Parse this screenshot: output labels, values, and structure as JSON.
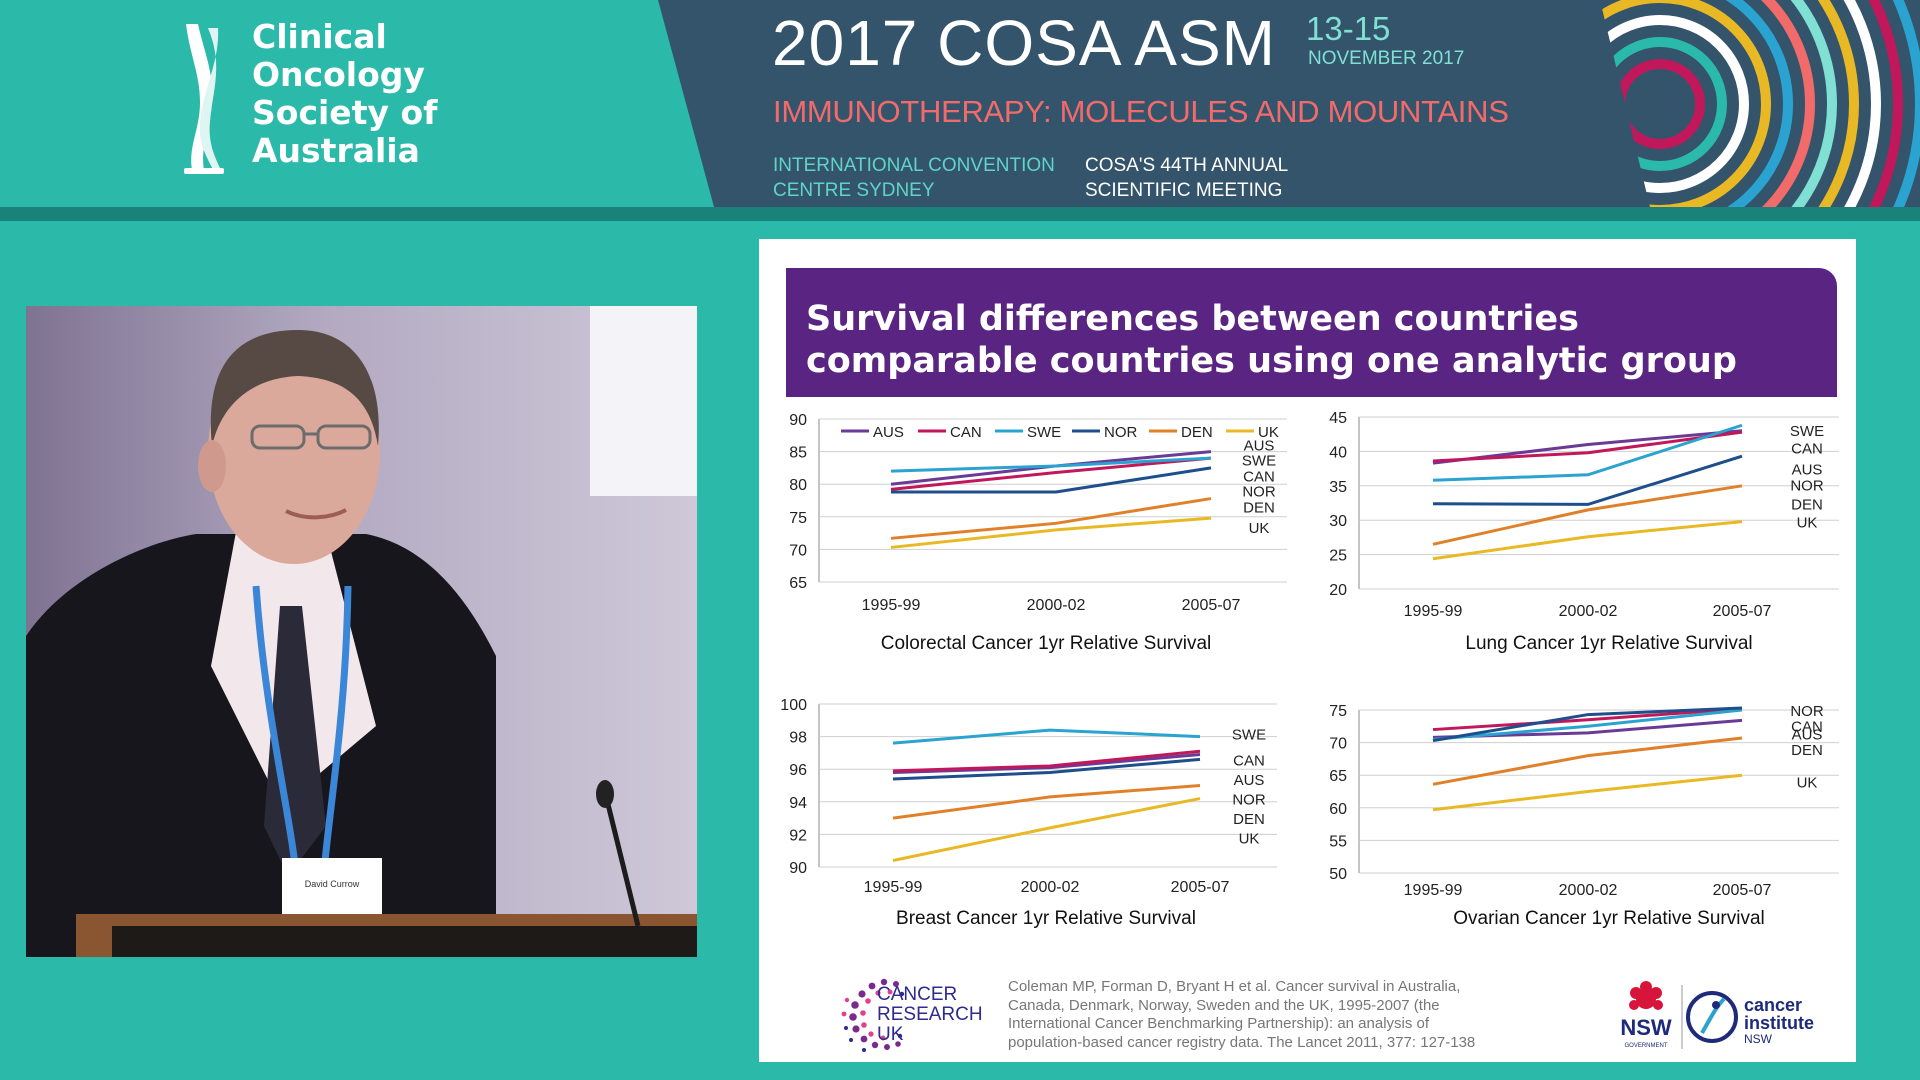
{
  "banner": {
    "org_lines": [
      "Clinical",
      "Oncology",
      "Society of",
      "Australia"
    ],
    "conference_title": "2017 COSA ASM",
    "dates": "13-15",
    "month": "NOVEMBER 2017",
    "theme": "IMMUNOTHERAPY: MOLECULES AND MOUNTAINS",
    "venue_lines": [
      "INTERNATIONAL CONVENTION",
      "CENTRE  SYDNEY"
    ],
    "meeting_lines": [
      "COSA'S 44TH ANNUAL",
      "SCIENTIFIC MEETING"
    ],
    "colors": {
      "teal": "#2bbaa9",
      "navy": "#34546c",
      "coral": "#f26b6b",
      "light_teal": "#7fe0d3"
    }
  },
  "speaker_badge": {
    "name": "David Currow"
  },
  "slide": {
    "title_lines": [
      "Survival differences between countries",
      "comparable countries using one analytic group"
    ],
    "header_color": "#5a2483",
    "footer": {
      "cruk_lines": [
        "CANCER",
        "RESEARCH",
        "UK"
      ],
      "citation_lines": [
        "Coleman MP, Forman D, Bryant H et al. Cancer survival in Australia,",
        "Canada, Denmark, Norway, Sweden and the UK, 1995-2007 (the",
        "International Cancer Benchmarking Partnership): an analysis of",
        "population-based cancer registry data. The Lancet 2011, 377: 127-138"
      ],
      "nsw_label": "NSW",
      "nsw_sub": "GOVERNMENT",
      "cinsw_lines": [
        "cancer",
        "institute",
        "NSW"
      ]
    }
  },
  "chart_data": [
    {
      "type": "line",
      "title": "Colorectal Cancer 1yr Relative Survival",
      "categories": [
        "1995-99",
        "2000-02",
        "2005-07"
      ],
      "ylim": [
        65,
        90
      ],
      "yticks": [
        65,
        70,
        75,
        80,
        85,
        90
      ],
      "legend": [
        {
          "name": "AUS",
          "color": "#6a3a96"
        },
        {
          "name": "CAN",
          "color": "#c0185a"
        },
        {
          "name": "SWE",
          "color": "#2ba3d0"
        },
        {
          "name": "NOR",
          "color": "#1f4e8c"
        },
        {
          "name": "DEN",
          "color": "#e0812a"
        },
        {
          "name": "UK",
          "color": "#e8b925"
        }
      ],
      "series": [
        {
          "name": "AUS",
          "color": "#6a3a96",
          "values": [
            80,
            82.8,
            85
          ]
        },
        {
          "name": "CAN",
          "color": "#c0185a",
          "values": [
            79.2,
            81.8,
            84
          ]
        },
        {
          "name": "SWE",
          "color": "#2ba3d0",
          "values": [
            82,
            82.8,
            84
          ]
        },
        {
          "name": "NOR",
          "color": "#1f4e8c",
          "values": [
            78.8,
            78.8,
            82.5
          ]
        },
        {
          "name": "DEN",
          "color": "#e0812a",
          "values": [
            71.7,
            74,
            77.8
          ]
        },
        {
          "name": "UK",
          "color": "#e8b925",
          "values": [
            70.3,
            73,
            74.8
          ]
        }
      ],
      "end_labels": [
        {
          "text": "AUS",
          "value": 86.1
        },
        {
          "text": "SWE",
          "value": 83.8
        },
        {
          "text": "CAN",
          "value": 81.3
        },
        {
          "text": "NOR",
          "value": 79.0
        },
        {
          "text": "DEN",
          "value": 76.6
        },
        {
          "text": "UK",
          "value": 73.4
        }
      ]
    },
    {
      "type": "line",
      "title": "Lung Cancer 1yr Relative Survival",
      "categories": [
        "1995-99",
        "2000-02",
        "2005-07"
      ],
      "ylim": [
        20,
        45
      ],
      "yticks": [
        20,
        25,
        30,
        35,
        40,
        45
      ],
      "series": [
        {
          "name": "AUS",
          "color": "#6a3a96",
          "values": [
            38.3,
            41,
            43
          ]
        },
        {
          "name": "CAN",
          "color": "#c0185a",
          "values": [
            38.6,
            39.8,
            42.8
          ]
        },
        {
          "name": "SWE",
          "color": "#2ba3d0",
          "values": [
            35.8,
            36.6,
            43.8
          ]
        },
        {
          "name": "NOR",
          "color": "#1f4e8c",
          "values": [
            32.4,
            32.3,
            39.3
          ]
        },
        {
          "name": "DEN",
          "color": "#e0812a",
          "values": [
            26.5,
            31.5,
            35
          ]
        },
        {
          "name": "UK",
          "color": "#e8b925",
          "values": [
            24.4,
            27.6,
            29.8
          ]
        }
      ],
      "end_labels": [
        {
          "text": "SWE",
          "value": 43.1
        },
        {
          "text": "CAN",
          "value": 40.6
        },
        {
          "text": "AUS",
          "value": 37.5
        },
        {
          "text": "NOR",
          "value": 35.2
        },
        {
          "text": "DEN",
          "value": 32.4
        },
        {
          "text": "UK",
          "value": 29.8
        }
      ]
    },
    {
      "type": "line",
      "title": "Breast Cancer 1yr Relative Survival",
      "categories": [
        "1995-99",
        "2000-02",
        "2005-07"
      ],
      "ylim": [
        90,
        100
      ],
      "yticks": [
        90,
        92,
        94,
        96,
        98,
        100
      ],
      "series": [
        {
          "name": "AUS",
          "color": "#6a3a96",
          "values": [
            95.8,
            96.1,
            96.9
          ]
        },
        {
          "name": "CAN",
          "color": "#c0185a",
          "values": [
            95.9,
            96.2,
            97.1
          ]
        },
        {
          "name": "SWE",
          "color": "#2ba3d0",
          "values": [
            97.6,
            98.4,
            98
          ]
        },
        {
          "name": "NOR",
          "color": "#1f4e8c",
          "values": [
            95.4,
            95.8,
            96.6
          ]
        },
        {
          "name": "DEN",
          "color": "#e0812a",
          "values": [
            93,
            94.3,
            95
          ]
        },
        {
          "name": "UK",
          "color": "#e8b925",
          "values": [
            90.4,
            92.4,
            94.2
          ]
        }
      ],
      "end_labels": [
        {
          "text": "SWE",
          "value": 98.2
        },
        {
          "text": "CAN",
          "value": 96.6
        },
        {
          "text": "AUS",
          "value": 95.4
        },
        {
          "text": "NOR",
          "value": 94.2
        },
        {
          "text": "DEN",
          "value": 93.0
        },
        {
          "text": "UK",
          "value": 91.8
        }
      ]
    },
    {
      "type": "line",
      "title": "Ovarian Cancer 1yr Relative Survival",
      "categories": [
        "1995-99",
        "2000-02",
        "2005-07"
      ],
      "ylim": [
        50,
        75
      ],
      "yticks": [
        50,
        55,
        60,
        65,
        70,
        75
      ],
      "series": [
        {
          "name": "AUS",
          "color": "#6a3a96",
          "values": [
            70.8,
            71.5,
            73.4
          ]
        },
        {
          "name": "CAN",
          "color": "#c0185a",
          "values": [
            72,
            73.5,
            75.2
          ]
        },
        {
          "name": "SWE",
          "color": "#2ba3d0",
          "values": [
            70.5,
            72.5,
            75
          ]
        },
        {
          "name": "NOR",
          "color": "#1f4e8c",
          "values": [
            70.3,
            74.3,
            75.3
          ]
        },
        {
          "name": "DEN",
          "color": "#e0812a",
          "values": [
            63.6,
            68,
            70.7
          ]
        },
        {
          "name": "UK",
          "color": "#e8b925",
          "values": [
            59.7,
            62.5,
            65
          ]
        }
      ],
      "end_labels": [
        {
          "text": "NOR",
          "value": 75.0
        },
        {
          "text": "CAN",
          "value": 72.6
        },
        {
          "text": "AUS",
          "value": 71.4
        },
        {
          "text": "DEN",
          "value": 69.0
        },
        {
          "text": "UK",
          "value": 64.0
        }
      ]
    }
  ]
}
